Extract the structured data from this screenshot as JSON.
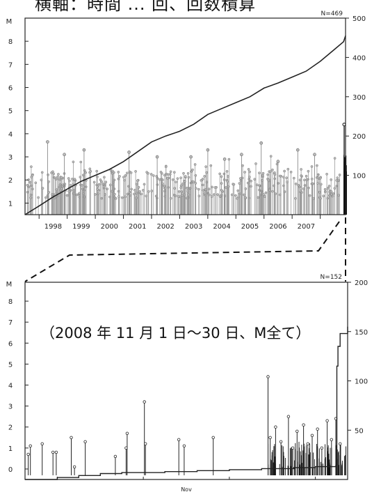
{
  "header_fragment": "横軸：時間 ... 回、回数積算",
  "chart_data": [
    {
      "type": "lollipop+cumulative-line",
      "n_label": "N=469",
      "y_left_label": "M",
      "y_left_range": [
        0.5,
        9
      ],
      "y_left_ticks": [
        "1",
        "2",
        "3",
        "4",
        "5",
        "6",
        "7",
        "8"
      ],
      "y_right_range": [
        0,
        500
      ],
      "y_right_ticks": [
        "100",
        "200",
        "300",
        "400",
        "500"
      ],
      "x_range": [
        1997.5,
        2008.9
      ],
      "x_ticks": [
        1998,
        1999,
        2000,
        2001,
        2002,
        2003,
        2004,
        2005,
        2006,
        2007,
        2008
      ],
      "x_tick_labels": [
        "1998",
        "1999",
        "2000",
        "2001",
        "2002",
        "2003",
        "2004",
        "2005",
        "2006",
        "2007"
      ],
      "cumulative": {
        "x": [
          1997.5,
          1998.0,
          1998.5,
          1999.0,
          1999.5,
          2000.0,
          2000.5,
          2001.0,
          2001.5,
          2002.0,
          2002.5,
          2003.0,
          2003.5,
          2004.0,
          2004.5,
          2005.0,
          2005.5,
          2006.0,
          2006.5,
          2007.0,
          2007.5,
          2008.0,
          2008.5,
          2008.83,
          2008.9
        ],
        "y": [
          0,
          22,
          45,
          65,
          85,
          100,
          115,
          135,
          160,
          185,
          200,
          212,
          230,
          255,
          270,
          285,
          300,
          322,
          335,
          350,
          365,
          390,
          420,
          440,
          455
        ]
      },
      "magnitudes_summary": "dense daily events M≈1.5–2.5 with peaks near 3.6 (1998), 3.2 (2001), 3.0 (2002), 3.3 (2004), 3.1 (2005), 3.6 (2005), 3.3 (2007), 4.4 (2008-11)"
    },
    {
      "type": "lollipop+cumulative-line",
      "subtitle": "（2008 年 11 月 1 日〜30 日、M全て）",
      "n_label": "N=152",
      "y_left_label": "M",
      "y_left_range": [
        -0.5,
        8.9
      ],
      "y_left_ticks": [
        "0",
        "1",
        "2",
        "3",
        "4",
        "5",
        "6",
        "7",
        "8"
      ],
      "y_right_range": [
        0,
        200
      ],
      "y_right_ticks": [
        "50",
        "100",
        "150",
        "200"
      ],
      "x_range": [
        1,
        31
      ],
      "x_label": "Nov",
      "cumulative": {
        "x": [
          1,
          4,
          6,
          8,
          10,
          14,
          17,
          20,
          23,
          26,
          28,
          29.9,
          30.0,
          30.1,
          30.3,
          31
        ],
        "y": [
          0,
          2,
          4,
          6,
          7,
          8,
          9,
          10,
          11,
          12,
          13,
          14,
          115,
          135,
          148,
          155
        ]
      },
      "events": [
        {
          "x": 1.3,
          "m": 0.7
        },
        {
          "x": 1.5,
          "m": 1.1
        },
        {
          "x": 2.6,
          "m": 1.2
        },
        {
          "x": 3.6,
          "m": 0.8
        },
        {
          "x": 3.9,
          "m": 0.8
        },
        {
          "x": 5.3,
          "m": 1.5
        },
        {
          "x": 5.6,
          "m": 0.1
        },
        {
          "x": 6.6,
          "m": 1.3
        },
        {
          "x": 9.4,
          "m": 0.6
        },
        {
          "x": 10.5,
          "m": 1.7
        },
        {
          "x": 10.4,
          "m": 1.0
        },
        {
          "x": 12.1,
          "m": 3.2
        },
        {
          "x": 12.2,
          "m": 1.2
        },
        {
          "x": 15.3,
          "m": 1.4
        },
        {
          "x": 15.8,
          "m": 1.1
        },
        {
          "x": 18.5,
          "m": 1.5
        },
        {
          "x": 23.6,
          "m": 4.4
        },
        {
          "x": 23.8,
          "m": 1.5
        },
        {
          "x": 24.3,
          "m": 2.0
        },
        {
          "x": 24.8,
          "m": 1.3
        },
        {
          "x": 25.5,
          "m": 2.5
        },
        {
          "x": 25.9,
          "m": 1.0
        },
        {
          "x": 26.3,
          "m": 1.8
        },
        {
          "x": 26.9,
          "m": 2.1
        },
        {
          "x": 27.3,
          "m": 1.2
        },
        {
          "x": 27.7,
          "m": 1.6
        },
        {
          "x": 28.2,
          "m": 1.9
        },
        {
          "x": 28.6,
          "m": 1.0
        },
        {
          "x": 29.1,
          "m": 2.3
        },
        {
          "x": 29.5,
          "m": 1.4
        },
        {
          "x": 29.9,
          "m": 2.4
        },
        {
          "x": 30.3,
          "m": 1.2
        }
      ]
    }
  ]
}
